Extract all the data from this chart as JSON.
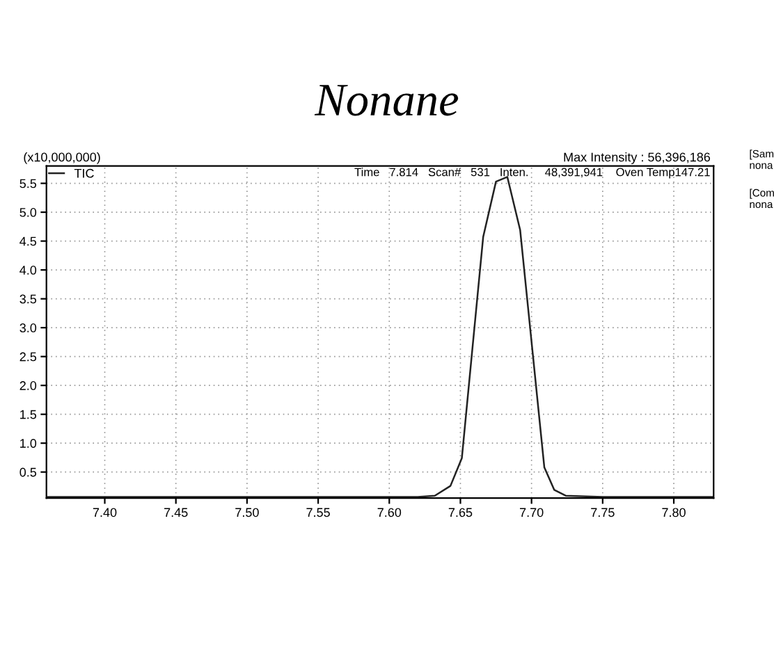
{
  "chart_data": {
    "type": "line",
    "title": "Nonane",
    "ylabel": "(x10,000,000)",
    "annotations": [
      "Max Intensity : 56,396,186",
      "Time   7.814   Scan#   531   Inten.     48,391,941    Oven Temp147.21",
      "[Sam\nnona",
      "[Com\nnona"
    ],
    "series": [
      {
        "name": "TIC",
        "color": "#222222",
        "x": [
          7.36,
          7.5,
          7.62,
          7.632,
          7.643,
          7.651,
          7.666,
          7.675,
          7.683,
          7.692,
          7.709,
          7.716,
          7.724,
          7.75,
          7.828
        ],
        "values": [
          0.07,
          0.07,
          0.07,
          0.09,
          0.26,
          0.74,
          4.57,
          5.53,
          5.61,
          4.69,
          0.58,
          0.19,
          0.09,
          0.07,
          0.07
        ]
      }
    ],
    "xlim": [
      7.359,
      7.828
    ],
    "xticks": [
      {
        "value": 7.4,
        "label": "7.40"
      },
      {
        "value": 7.45,
        "label": "7.45"
      },
      {
        "value": 7.5,
        "label": "7.50"
      },
      {
        "value": 7.55,
        "label": "7.55"
      },
      {
        "value": 7.6,
        "label": "7.60"
      },
      {
        "value": 7.65,
        "label": "7.65"
      },
      {
        "value": 7.7,
        "label": "7.70"
      },
      {
        "value": 7.75,
        "label": "7.75"
      },
      {
        "value": 7.8,
        "label": "7.80"
      }
    ],
    "ylim": [
      0.05,
      5.8
    ],
    "yticks": [
      0.5,
      {
        "value": 1.0,
        "label": "1.0"
      },
      1.5,
      {
        "value": 2.0,
        "label": "2.0"
      },
      2.5,
      {
        "value": 3.0,
        "label": "3.0"
      },
      3.5,
      {
        "value": 4.0,
        "label": "4.0"
      },
      4.5,
      {
        "value": 5.0,
        "label": "5.0"
      },
      5.5
    ],
    "grid": true,
    "legend": "top left",
    "line_style": "solid",
    "marker": "none"
  }
}
